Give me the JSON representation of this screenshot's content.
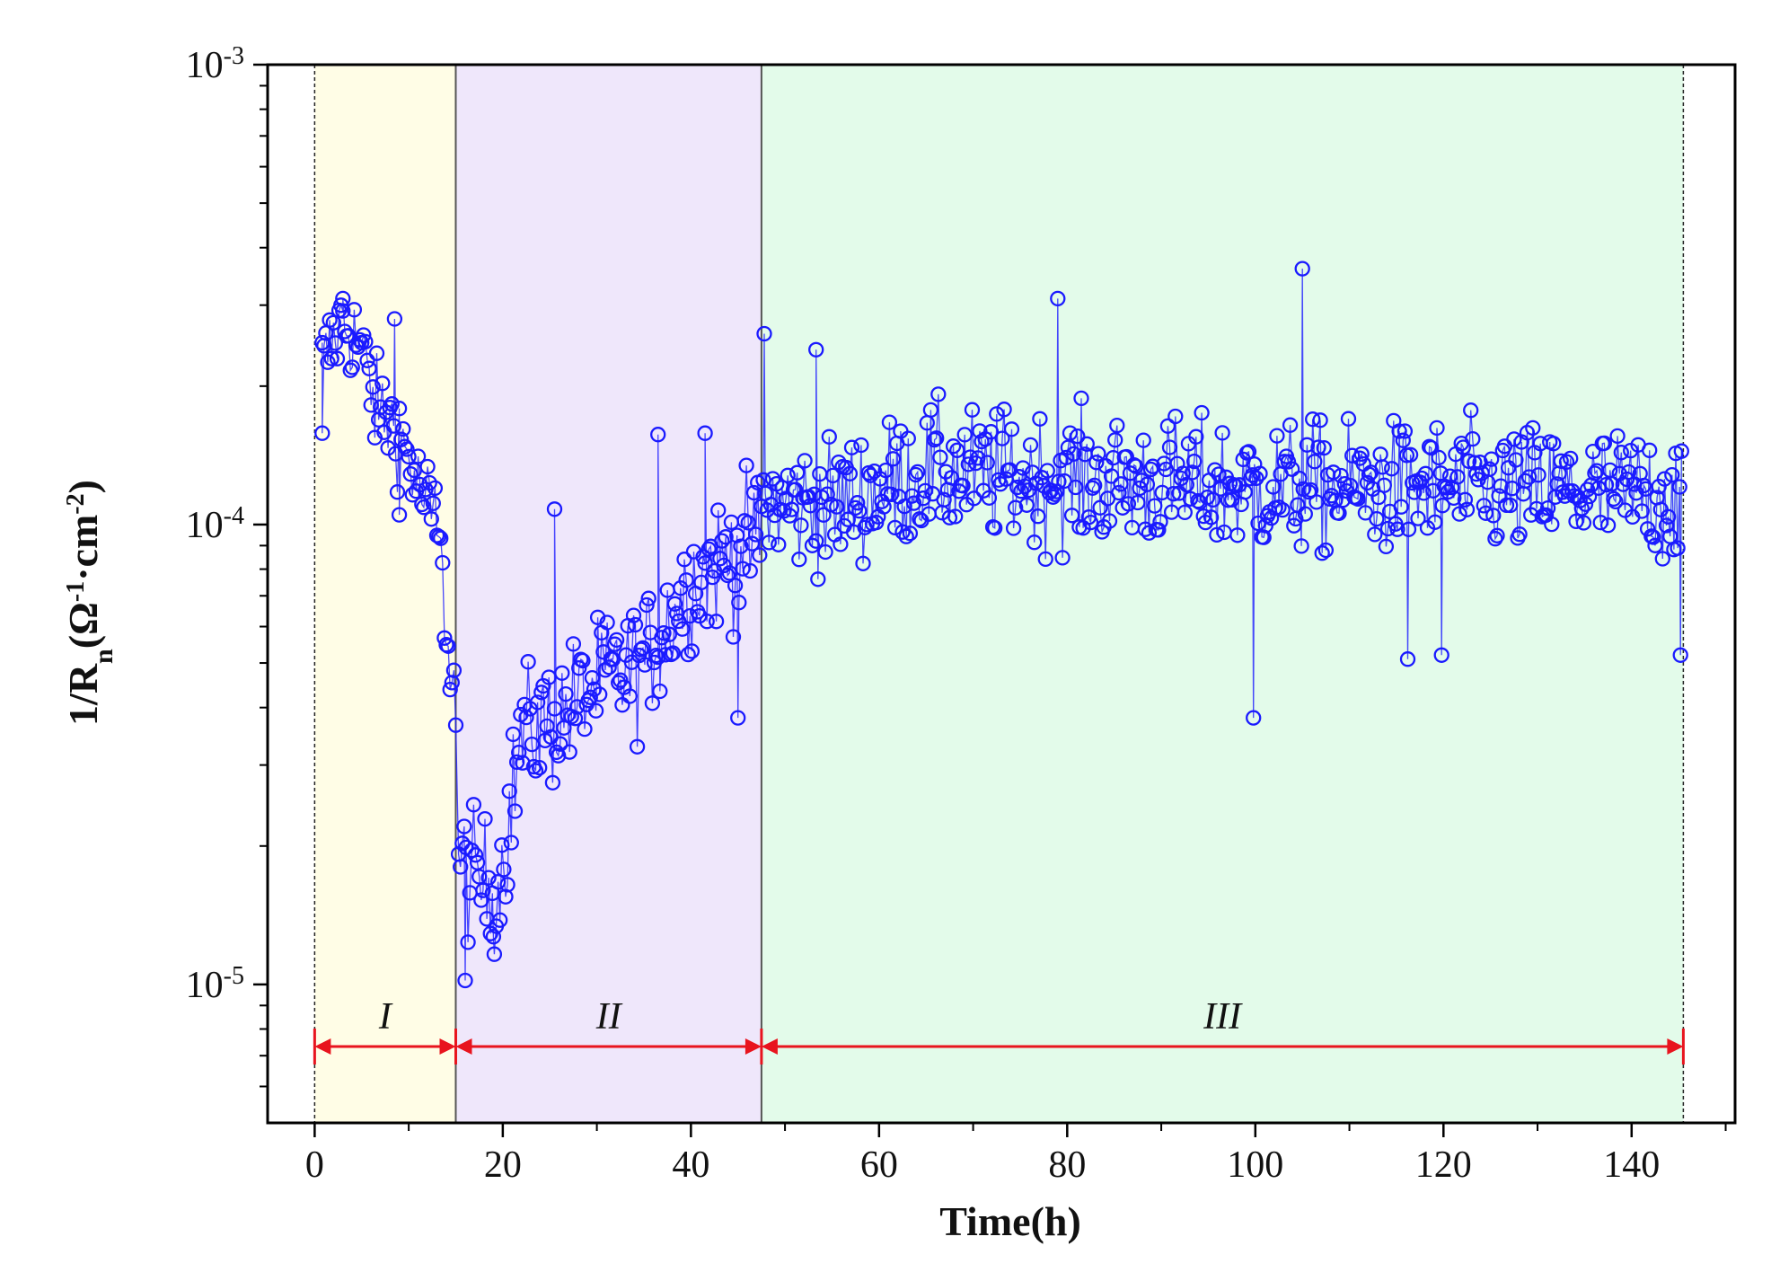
{
  "chart_data": {
    "type": "scatter",
    "title": "",
    "xlabel": "Time(h)",
    "ylabel": "1/Rn(Ω-1·cm-2)",
    "ylabel_parts": {
      "lead": "1/R",
      "sub": "n",
      "open": "(Ω",
      "sup1": "-1",
      "mid": "·cm",
      "sup2": "-2",
      "close": ")"
    },
    "xlim": [
      -5,
      151
    ],
    "ylim": [
      5e-06,
      0.001
    ],
    "yscale": "log",
    "x_ticks": [
      "0",
      "20",
      "40",
      "60",
      "80",
      "100",
      "120",
      "140"
    ],
    "y_ticks": [
      {
        "value": 1e-05,
        "base": "10",
        "exp": "-5"
      },
      {
        "value": 0.0001,
        "base": "10",
        "exp": "-4"
      },
      {
        "value": 0.001,
        "base": "10",
        "exp": "-3"
      }
    ],
    "grid": false,
    "legend": "none",
    "regions": [
      {
        "label": "I",
        "x_start": 0,
        "x_end": 15,
        "color": "#fffde6"
      },
      {
        "label": "II",
        "x_start": 15,
        "x_end": 47.5,
        "color": "#efe7fb"
      },
      {
        "label": "III",
        "x_start": 47.5,
        "x_end": 145.5,
        "color": "#e3fbea"
      }
    ],
    "series": [
      {
        "marker": "open-circle",
        "color": "#1a1aff",
        "segments": [
          {
            "x_start": 0.8,
            "x_end": 15,
            "anchors": [
              [
                0.8,
                0.00022
              ],
              [
                3,
                0.00028
              ],
              [
                5,
                0.00024
              ],
              [
                6.5,
                0.00018
              ],
              [
                9,
                0.00016
              ],
              [
                11,
                0.00012
              ],
              [
                13,
                0.0001
              ],
              [
                14,
                6e-05
              ],
              [
                15,
                4e-05
              ]
            ]
          },
          {
            "x_start": 15.3,
            "x_end": 47.3,
            "anchors": [
              [
                15.3,
                1.8e-05
              ],
              [
                17,
                1.7e-05
              ],
              [
                19.5,
                1.6e-05
              ],
              [
                22,
                3.5e-05
              ],
              [
                26,
                3.8e-05
              ],
              [
                30,
                4.5e-05
              ],
              [
                35,
                5e-05
              ],
              [
                40,
                7.5e-05
              ],
              [
                44,
                8.5e-05
              ],
              [
                47.3,
                9.5e-05
              ]
            ]
          },
          {
            "x_start": 47.5,
            "x_end": 145.3,
            "anchors": [
              [
                47.5,
                0.00011
              ],
              [
                55,
                0.00011
              ],
              [
                65,
                0.00013
              ],
              [
                80,
                0.000125
              ],
              [
                100,
                0.00012
              ],
              [
                120,
                0.00012
              ],
              [
                145.3,
                0.000115
              ]
            ]
          }
        ],
        "notable_points": [
          [
            0.8,
            0.000158
          ],
          [
            3,
            0.00031
          ],
          [
            8.5,
            0.00028
          ],
          [
            9,
            0.000105
          ],
          [
            16,
            1.02e-05
          ],
          [
            19,
            1.27e-05
          ],
          [
            25.5,
            0.000108
          ],
          [
            36.5,
            0.000157
          ],
          [
            41.5,
            0.000158
          ],
          [
            45,
            3.8e-05
          ],
          [
            47.8,
            0.00026
          ],
          [
            53.3,
            0.00024
          ],
          [
            79,
            0.00031
          ],
          [
            99.8,
            3.8e-05
          ],
          [
            105,
            0.00036
          ],
          [
            116.2,
            5.1e-05
          ],
          [
            119.8,
            5.2e-05
          ],
          [
            145.2,
            5.2e-05
          ]
        ],
        "noise_amplitude_log10": [
          0.15,
          0.2,
          0.2
        ],
        "points_per_hour": 5
      }
    ]
  }
}
